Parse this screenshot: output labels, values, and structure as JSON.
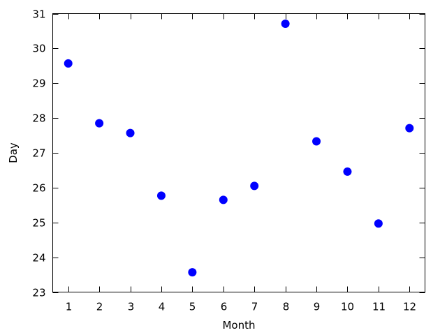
{
  "chart_data": {
    "type": "scatter",
    "title": "",
    "xlabel": "Month",
    "ylabel": "Day",
    "xlim": [
      0.5,
      12.5
    ],
    "ylim": [
      23,
      31
    ],
    "xticks": [
      1,
      2,
      3,
      4,
      5,
      6,
      7,
      8,
      9,
      10,
      11,
      12
    ],
    "yticks": [
      23,
      24,
      25,
      26,
      27,
      28,
      29,
      30,
      31
    ],
    "grid": false,
    "legend": "none",
    "marker_color": "#0000ff",
    "series": [
      {
        "x": [
          1,
          2,
          3,
          4,
          5,
          6,
          7,
          8,
          9,
          10,
          11,
          12
        ],
        "y": [
          29.57,
          27.85,
          27.57,
          25.77,
          23.57,
          25.65,
          26.05,
          30.71,
          27.33,
          26.46,
          24.97,
          27.71
        ]
      }
    ]
  }
}
